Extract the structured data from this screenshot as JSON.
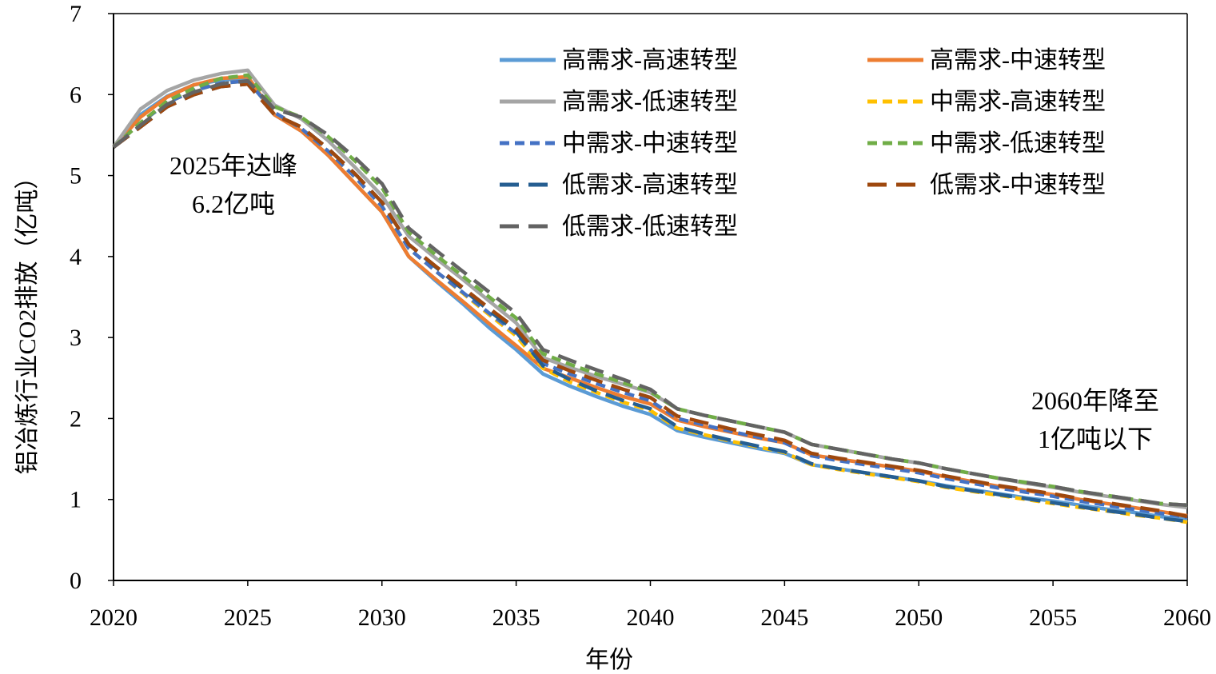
{
  "chart_data": {
    "type": "line",
    "title": "",
    "xlabel": "年份",
    "ylabel": "铝冶炼行业CO2排放（亿吨）",
    "xlim": [
      2020,
      2060
    ],
    "ylim": [
      0,
      7
    ],
    "x_ticks": [
      "2020",
      "2025",
      "2030",
      "2035",
      "2040",
      "2045",
      "2050",
      "2055",
      "2060"
    ],
    "y_ticks": [
      "0",
      "1",
      "2",
      "3",
      "4",
      "5",
      "6",
      "7"
    ],
    "grid": false,
    "legend_position": "top-right",
    "x": [
      2020,
      2021,
      2022,
      2023,
      2024,
      2025,
      2026,
      2027,
      2028,
      2029,
      2030,
      2031,
      2032,
      2033,
      2034,
      2035,
      2036,
      2037,
      2038,
      2039,
      2040,
      2041,
      2042,
      2043,
      2044,
      2045,
      2046,
      2047,
      2048,
      2049,
      2050,
      2051,
      2052,
      2053,
      2054,
      2055,
      2056,
      2057,
      2058,
      2059,
      2060
    ],
    "series": [
      {
        "name": "高需求-高速转型",
        "color": "#5B9BD5",
        "dash": "solid",
        "values": [
          5.35,
          5.75,
          5.98,
          6.12,
          6.18,
          6.2,
          5.75,
          5.55,
          5.25,
          4.9,
          4.55,
          4.0,
          3.7,
          3.42,
          3.12,
          2.85,
          2.55,
          2.4,
          2.27,
          2.15,
          2.05,
          1.85,
          1.77,
          1.7,
          1.63,
          1.57,
          1.43,
          1.38,
          1.33,
          1.28,
          1.23,
          1.17,
          1.12,
          1.07,
          1.02,
          0.98,
          0.93,
          0.88,
          0.84,
          0.79,
          0.75
        ]
      },
      {
        "name": "高需求-中速转型",
        "color": "#ED7D31",
        "dash": "solid",
        "values": [
          5.35,
          5.72,
          5.97,
          6.12,
          6.2,
          6.22,
          5.75,
          5.55,
          5.25,
          4.9,
          4.55,
          4.0,
          3.72,
          3.45,
          3.17,
          2.9,
          2.62,
          2.5,
          2.38,
          2.27,
          2.18,
          1.98,
          1.9,
          1.83,
          1.76,
          1.7,
          1.55,
          1.5,
          1.45,
          1.4,
          1.35,
          1.28,
          1.22,
          1.16,
          1.11,
          1.06,
          1.0,
          0.95,
          0.9,
          0.85,
          0.8
        ]
      },
      {
        "name": "高需求-低速转型",
        "color": "#A5A5A5",
        "dash": "solid",
        "values": [
          5.35,
          5.82,
          6.05,
          6.18,
          6.26,
          6.3,
          5.87,
          5.7,
          5.43,
          5.1,
          4.75,
          4.25,
          3.98,
          3.72,
          3.45,
          3.18,
          2.75,
          2.63,
          2.52,
          2.42,
          2.32,
          2.12,
          2.04,
          1.97,
          1.9,
          1.83,
          1.68,
          1.62,
          1.56,
          1.5,
          1.45,
          1.38,
          1.32,
          1.26,
          1.2,
          1.15,
          1.09,
          1.04,
          0.99,
          0.94,
          0.9
        ]
      },
      {
        "name": "中需求-高速转型",
        "color": "#FFC000",
        "dash": "short",
        "values": [
          5.35,
          5.65,
          5.9,
          6.05,
          6.14,
          6.17,
          5.78,
          5.58,
          5.3,
          4.98,
          4.62,
          4.1,
          3.82,
          3.55,
          3.28,
          3.02,
          2.62,
          2.45,
          2.32,
          2.2,
          2.1,
          1.88,
          1.8,
          1.72,
          1.65,
          1.58,
          1.43,
          1.37,
          1.32,
          1.27,
          1.22,
          1.15,
          1.1,
          1.05,
          1.0,
          0.95,
          0.9,
          0.86,
          0.81,
          0.77,
          0.72
        ]
      },
      {
        "name": "中需求-中速转型",
        "color": "#4472C4",
        "dash": "short",
        "values": [
          5.35,
          5.65,
          5.9,
          6.05,
          6.14,
          6.17,
          5.78,
          5.58,
          5.3,
          4.98,
          4.62,
          4.1,
          3.82,
          3.56,
          3.3,
          3.05,
          2.68,
          2.55,
          2.43,
          2.32,
          2.22,
          2.0,
          1.92,
          1.84,
          1.77,
          1.7,
          1.54,
          1.48,
          1.43,
          1.38,
          1.33,
          1.26,
          1.2,
          1.14,
          1.09,
          1.04,
          0.98,
          0.93,
          0.88,
          0.83,
          0.78
        ]
      },
      {
        "name": "中需求-低速转型",
        "color": "#70AD47",
        "dash": "short",
        "values": [
          5.35,
          5.65,
          5.92,
          6.08,
          6.2,
          6.24,
          5.85,
          5.72,
          5.48,
          5.18,
          4.85,
          4.3,
          4.02,
          3.76,
          3.5,
          3.24,
          2.8,
          2.67,
          2.55,
          2.44,
          2.33,
          2.12,
          2.04,
          1.97,
          1.9,
          1.83,
          1.68,
          1.62,
          1.56,
          1.5,
          1.45,
          1.38,
          1.32,
          1.26,
          1.21,
          1.16,
          1.1,
          1.05,
          1.0,
          0.95,
          0.93
        ]
      },
      {
        "name": "低需求-高速转型",
        "color": "#255E91",
        "dash": "long",
        "values": [
          5.35,
          5.6,
          5.85,
          6.0,
          6.1,
          6.13,
          5.75,
          5.6,
          5.33,
          5.02,
          4.67,
          4.15,
          3.87,
          3.6,
          3.33,
          3.07,
          2.65,
          2.48,
          2.34,
          2.22,
          2.12,
          1.9,
          1.81,
          1.73,
          1.66,
          1.59,
          1.44,
          1.38,
          1.33,
          1.28,
          1.23,
          1.16,
          1.11,
          1.06,
          1.01,
          0.96,
          0.91,
          0.86,
          0.82,
          0.77,
          0.73
        ]
      },
      {
        "name": "低需求-中速转型",
        "color": "#9E480E",
        "dash": "long",
        "values": [
          5.35,
          5.6,
          5.85,
          6.0,
          6.1,
          6.13,
          5.75,
          5.6,
          5.33,
          5.02,
          4.67,
          4.15,
          3.88,
          3.62,
          3.36,
          3.11,
          2.72,
          2.59,
          2.47,
          2.36,
          2.26,
          2.03,
          1.95,
          1.87,
          1.8,
          1.73,
          1.57,
          1.51,
          1.46,
          1.41,
          1.36,
          1.29,
          1.23,
          1.17,
          1.12,
          1.07,
          1.01,
          0.96,
          0.91,
          0.86,
          0.79
        ]
      },
      {
        "name": "低需求-低速转型",
        "color": "#636363",
        "dash": "long",
        "values": [
          5.35,
          5.62,
          5.88,
          6.03,
          6.13,
          6.17,
          5.82,
          5.72,
          5.5,
          5.22,
          4.9,
          4.35,
          4.08,
          3.82,
          3.56,
          3.3,
          2.85,
          2.72,
          2.6,
          2.48,
          2.36,
          2.12,
          2.04,
          1.97,
          1.9,
          1.83,
          1.68,
          1.62,
          1.56,
          1.5,
          1.45,
          1.38,
          1.32,
          1.26,
          1.21,
          1.16,
          1.1,
          1.05,
          1.0,
          0.95,
          0.93
        ]
      }
    ],
    "annotations": [
      {
        "id": "peak",
        "lines": [
          "2025年达峰",
          "6.2亿吨"
        ]
      },
      {
        "id": "end",
        "lines": [
          "2060年降至",
          "1亿吨以下"
        ]
      }
    ]
  }
}
